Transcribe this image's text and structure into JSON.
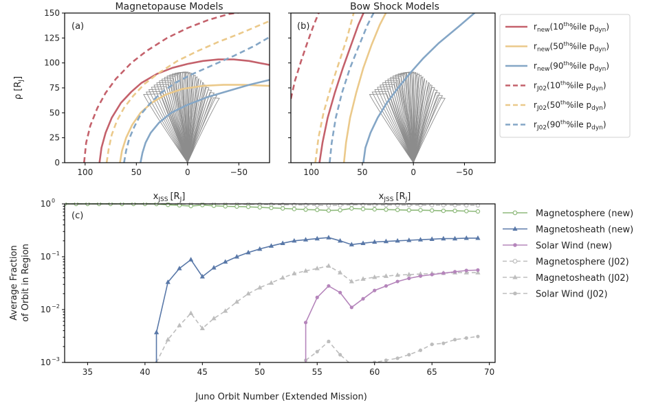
{
  "colors": {
    "red": "#c4616b",
    "gold": "#ebc98a",
    "blue": "#84a6c6",
    "orbit": "#808080",
    "green": "#8db97a",
    "navy": "#5978a8",
    "purple": "#b585bb",
    "gray": "#bdbdbd"
  },
  "chart_data": [
    {
      "type": "line",
      "panel_label": "(a)",
      "title": "Magnetopause Models",
      "xlabel": "x",
      "xlabel_sub": "JSS",
      "xlabel_unit": "[R",
      "xlabel_unit_sub": "J",
      "xlabel_close": "]",
      "ylabel": "ρ [R",
      "ylabel_sub": "J",
      "ylabel_close": "]",
      "xlim": [
        120,
        -80
      ],
      "ylim": [
        0,
        150
      ],
      "xticks": [
        100,
        50,
        0,
        -50
      ],
      "xtick_labels": [
        "100",
        "50",
        "0",
        "−50"
      ],
      "yticks": [
        0,
        25,
        50,
        75,
        100,
        125,
        150
      ],
      "series": [
        {
          "style": "solid",
          "color": "red",
          "x": [
            86,
            84,
            80,
            74,
            65,
            55,
            45,
            30,
            15,
            0,
            -15,
            -30,
            -45,
            -60,
            -80
          ],
          "y": [
            0,
            15,
            30,
            45,
            60,
            71,
            80,
            89,
            95,
            99,
            102,
            103.5,
            103.5,
            102,
            98
          ]
        },
        {
          "style": "solid",
          "color": "gold",
          "x": [
            66,
            64,
            60,
            54,
            46,
            35,
            22,
            5,
            -15,
            -35,
            -55,
            -80
          ],
          "y": [
            0,
            12,
            25,
            38,
            50,
            60,
            68,
            74,
            77,
            78,
            78,
            77
          ]
        },
        {
          "style": "solid",
          "color": "blue",
          "x": [
            46,
            44,
            41,
            36,
            28,
            16,
            0,
            -20,
            -40,
            -60,
            -80
          ],
          "y": [
            0,
            10,
            20,
            30,
            40,
            50,
            58,
            66,
            72,
            78,
            83
          ]
        },
        {
          "style": "dashed",
          "color": "red",
          "x": [
            101,
            99,
            95,
            88,
            80,
            70,
            55,
            40,
            20,
            0,
            -20,
            -40,
            -60,
            -80
          ],
          "y": [
            0,
            20,
            37,
            55,
            70,
            84,
            100,
            112,
            125,
            135,
            143,
            149,
            152,
            155
          ]
        },
        {
          "style": "dashed",
          "color": "gold",
          "x": [
            79,
            77,
            74,
            69,
            62,
            53,
            42,
            28,
            10,
            -10,
            -30,
            -50,
            -80
          ],
          "y": [
            0,
            14,
            28,
            42,
            55,
            67,
            79,
            90,
            102,
            112,
            121,
            129,
            142
          ]
        },
        {
          "style": "dashed",
          "color": "blue",
          "x": [
            62,
            60,
            57,
            52,
            46,
            37,
            26,
            12,
            -5,
            -25,
            -45,
            -65,
            -80
          ],
          "y": [
            0,
            12,
            24,
            36,
            48,
            59,
            70,
            80,
            89,
            98,
            107,
            117,
            126
          ]
        }
      ]
    },
    {
      "type": "line",
      "panel_label": "(b)",
      "title": "Bow Shock Models",
      "xlabel": "x",
      "xlabel_sub": "JSS",
      "xlabel_unit": "[R",
      "xlabel_unit_sub": "J",
      "xlabel_close": "]",
      "xlim": [
        120,
        -80
      ],
      "ylim": [
        0,
        150
      ],
      "xticks": [
        100,
        50,
        0,
        -50
      ],
      "xtick_labels": [
        "100",
        "50",
        "0",
        "−50"
      ],
      "series": [
        {
          "style": "solid",
          "color": "red",
          "x": [
            92,
            89,
            84,
            77,
            69,
            61,
            54,
            48
          ],
          "y": [
            0,
            20,
            45,
            70,
            95,
            118,
            138,
            152
          ]
        },
        {
          "style": "solid",
          "color": "gold",
          "x": [
            68,
            66,
            62,
            56,
            49,
            41,
            33,
            26
          ],
          "y": [
            0,
            20,
            45,
            70,
            95,
            118,
            138,
            152
          ]
        },
        {
          "style": "solid",
          "color": "blue",
          "x": [
            49,
            47,
            42,
            35,
            26,
            15,
            3,
            -10,
            -25,
            -45,
            -62
          ],
          "y": [
            0,
            15,
            30,
            45,
            60,
            75,
            90,
            105,
            120,
            137,
            152
          ]
        },
        {
          "style": "dashed",
          "color": "red",
          "x": [
            120,
            116,
            110,
            104,
            98,
            92
          ],
          "y": [
            64,
            82,
            102,
            120,
            137,
            152
          ]
        },
        {
          "style": "dashed",
          "color": "gold",
          "x": [
            96,
            93,
            88,
            81,
            73,
            65,
            58
          ],
          "y": [
            0,
            25,
            50,
            75,
            100,
            125,
            152
          ]
        },
        {
          "style": "dashed",
          "color": "blue",
          "x": [
            82,
            80,
            76,
            70,
            62,
            53,
            45,
            38
          ],
          "y": [
            0,
            20,
            45,
            70,
            95,
            118,
            138,
            152
          ]
        }
      ]
    },
    {
      "type": "line",
      "panel_label": "(c)",
      "xlabel": "Juno Orbit Number (Extended Mission)",
      "ylabel_lines": [
        "Average Fraction",
        "of Orbit in Region"
      ],
      "yscale": "log",
      "xlim": [
        33,
        70.5
      ],
      "ylim": [
        0.001,
        1
      ],
      "xticks": [
        35,
        40,
        45,
        50,
        55,
        60,
        65,
        70
      ],
      "ytick_bases": [
        "10",
        "10",
        "10",
        "10"
      ],
      "ytick_exps": [
        "−3",
        "−2",
        "−1",
        "0"
      ],
      "ytick_values": [
        0.001,
        0.01,
        0.1,
        1
      ],
      "series": [
        {
          "name": "Magnetosphere (new)",
          "color": "green",
          "style": "solid",
          "marker": "o",
          "x": [
            33,
            34,
            35,
            36,
            37,
            38,
            39,
            40,
            41,
            42,
            43,
            44,
            45,
            46,
            47,
            48,
            49,
            50,
            51,
            52,
            53,
            54,
            55,
            56,
            57,
            58,
            59,
            60,
            61,
            62,
            63,
            64,
            65,
            66,
            67,
            68,
            69
          ],
          "y": [
            1,
            1,
            1,
            1,
            1,
            1,
            1,
            1,
            0.996,
            0.96,
            0.94,
            0.91,
            0.95,
            0.92,
            0.9,
            0.89,
            0.88,
            0.86,
            0.84,
            0.82,
            0.8,
            0.78,
            0.77,
            0.75,
            0.76,
            0.82,
            0.8,
            0.79,
            0.78,
            0.77,
            0.76,
            0.76,
            0.75,
            0.74,
            0.74,
            0.73,
            0.72
          ]
        },
        {
          "name": "Magnetosheath (new)",
          "color": "navy",
          "style": "solid",
          "marker": "^",
          "x": [
            41,
            41,
            42,
            43,
            44,
            45,
            46,
            47,
            48,
            49,
            50,
            51,
            52,
            53,
            54,
            55,
            56,
            57,
            58,
            59,
            60,
            61,
            62,
            63,
            64,
            65,
            66,
            67,
            68,
            69
          ],
          "y": [
            0.0007,
            0.0037,
            0.033,
            0.06,
            0.088,
            0.042,
            0.062,
            0.08,
            0.1,
            0.12,
            0.14,
            0.16,
            0.18,
            0.2,
            0.21,
            0.22,
            0.23,
            0.2,
            0.17,
            0.18,
            0.19,
            0.195,
            0.2,
            0.205,
            0.21,
            0.215,
            0.22,
            0.22,
            0.225,
            0.225
          ]
        },
        {
          "name": "Solar Wind (new)",
          "color": "purple",
          "style": "solid",
          "marker": "o",
          "x": [
            54,
            54,
            55,
            56,
            57,
            58,
            59,
            60,
            61,
            62,
            63,
            64,
            65,
            66,
            67,
            68,
            69
          ],
          "y": [
            0.0007,
            0.0057,
            0.017,
            0.028,
            0.021,
            0.011,
            0.016,
            0.023,
            0.028,
            0.034,
            0.039,
            0.043,
            0.046,
            0.049,
            0.052,
            0.055,
            0.056
          ]
        },
        {
          "name": "Magnetosphere (J02)",
          "color": "gray",
          "style": "dashed",
          "marker": "o",
          "x": [
            33,
            34,
            35,
            36,
            37,
            38,
            39,
            40,
            41,
            42,
            43,
            44,
            45,
            46,
            47,
            48,
            49,
            50,
            51,
            52,
            53,
            54,
            55,
            56,
            57,
            58,
            59,
            60,
            61,
            62,
            63,
            64,
            65,
            66,
            67,
            68,
            69
          ],
          "y": [
            1,
            1,
            1,
            1,
            1,
            1,
            1,
            1,
            1,
            0.998,
            0.995,
            0.99,
            0.995,
            0.992,
            0.99,
            0.985,
            0.98,
            0.975,
            0.97,
            0.96,
            0.955,
            0.95,
            0.94,
            0.93,
            0.94,
            0.96,
            0.955,
            0.95,
            0.95,
            0.95,
            0.945,
            0.945,
            0.945,
            0.945,
            0.945,
            0.94,
            0.94
          ]
        },
        {
          "name": "Magnetosheath (J02)",
          "color": "gray",
          "style": "dashed",
          "marker": "^",
          "x": [
            41,
            42,
            43,
            44,
            45,
            46,
            47,
            48,
            49,
            50,
            51,
            52,
            53,
            54,
            55,
            56,
            57,
            58,
            59,
            60,
            61,
            62,
            63,
            64,
            65,
            66,
            67,
            68,
            69
          ],
          "y": [
            0.001,
            0.0027,
            0.005,
            0.0085,
            0.0044,
            0.0068,
            0.0094,
            0.014,
            0.02,
            0.026,
            0.032,
            0.04,
            0.048,
            0.054,
            0.06,
            0.067,
            0.05,
            0.034,
            0.038,
            0.041,
            0.043,
            0.045,
            0.046,
            0.047,
            0.048,
            0.049,
            0.05,
            0.05,
            0.05
          ]
        },
        {
          "name": "Solar Wind (J02)",
          "color": "gray",
          "style": "dashed",
          "marker": "o",
          "x": [
            54,
            55,
            56,
            57,
            58,
            59,
            60,
            61,
            62,
            63,
            64,
            65,
            66,
            67,
            68,
            69
          ],
          "y": [
            0.0011,
            0.0016,
            0.0025,
            0.0014,
            0.0009,
            0.0009,
            0.001,
            0.0011,
            0.0012,
            0.0014,
            0.0017,
            0.0022,
            0.0023,
            0.0027,
            0.0029,
            0.0031
          ]
        }
      ]
    }
  ],
  "legend_top": [
    {
      "prefix": "r",
      "prefix_sub": "new",
      "mid": "(10",
      "sup": "th",
      "post": "%ile p",
      "post_sub": "dyn",
      "close": ")",
      "color": "red",
      "style": "solid"
    },
    {
      "prefix": "r",
      "prefix_sub": "new",
      "mid": "(50",
      "sup": "th",
      "post": "%ile p",
      "post_sub": "dyn",
      "close": ")",
      "color": "gold",
      "style": "solid"
    },
    {
      "prefix": "r",
      "prefix_sub": "new",
      "mid": "(90",
      "sup": "th",
      "post": "%ile p",
      "post_sub": "dyn",
      "close": ")",
      "color": "blue",
      "style": "solid"
    },
    {
      "prefix": "r",
      "prefix_sub": "J02",
      "mid": "(10",
      "sup": "th",
      "post": "%ile p",
      "post_sub": "dyn",
      "close": ")",
      "color": "red",
      "style": "dashed"
    },
    {
      "prefix": "r",
      "prefix_sub": "J02",
      "mid": "(50",
      "sup": "th",
      "post": "%ile p",
      "post_sub": "dyn",
      "close": ")",
      "color": "gold",
      "style": "dashed"
    },
    {
      "prefix": "r",
      "prefix_sub": "J02",
      "mid": "(90",
      "sup": "th",
      "post": "%ile p",
      "post_sub": "dyn",
      "close": ")",
      "color": "blue",
      "style": "dashed"
    }
  ]
}
